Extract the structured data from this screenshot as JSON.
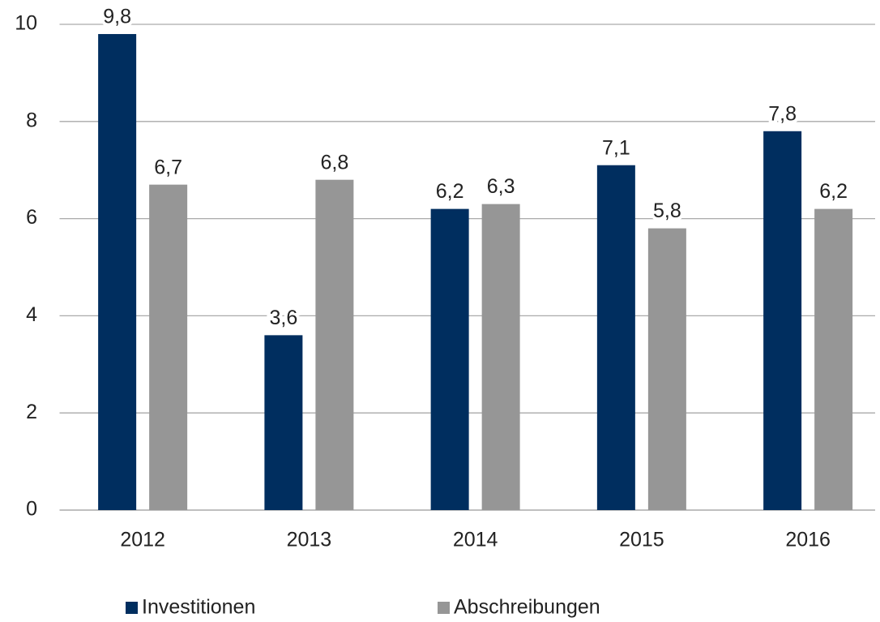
{
  "chart_data": {
    "type": "bar",
    "categories": [
      "2012",
      "2013",
      "2014",
      "2015",
      "2016"
    ],
    "series": [
      {
        "name": "Investitionen",
        "color": "#002e5f",
        "values": [
          9.8,
          3.6,
          6.2,
          7.1,
          7.8
        ],
        "value_labels": [
          "9,8",
          "3,6",
          "6,2",
          "7,1",
          "7,8"
        ]
      },
      {
        "name": "Abschreibungen",
        "color": "#969696",
        "values": [
          6.7,
          6.8,
          6.3,
          5.8,
          6.2
        ],
        "value_labels": [
          "6,7",
          "6,8",
          "6,3",
          "5,8",
          "6,2"
        ]
      }
    ],
    "ylim": [
      0,
      10
    ],
    "yticks": [
      0,
      2,
      4,
      6,
      8,
      10
    ],
    "grid": true,
    "legend": "bottom"
  }
}
